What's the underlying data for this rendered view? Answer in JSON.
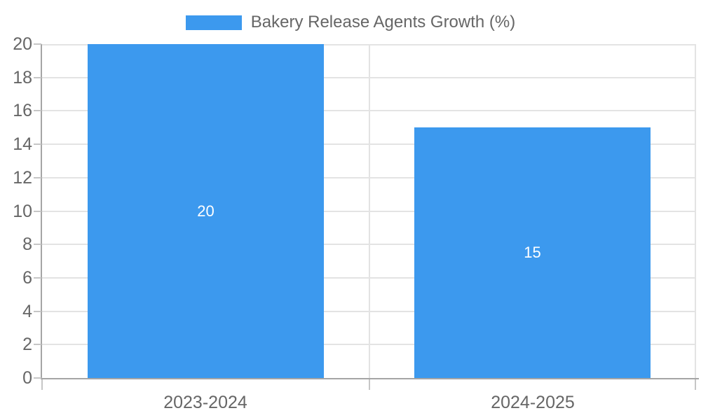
{
  "chart_data": {
    "type": "bar",
    "title": "Bakery Release Agents Growth (%)",
    "legend": {
      "position": "top",
      "entries": [
        "Bakery Release Agents Growth (%)"
      ]
    },
    "categories": [
      "2023-2024",
      "2024-2025"
    ],
    "series": [
      {
        "name": "Bakery Release Agents Growth (%)",
        "values": [
          20,
          15
        ]
      }
    ],
    "bar_value_labels": [
      "20",
      "15"
    ],
    "xlabel": "",
    "ylabel": "",
    "ylim": [
      0,
      20
    ],
    "yticks": [
      0,
      2,
      4,
      6,
      8,
      10,
      12,
      14,
      16,
      18,
      20
    ],
    "grid": true,
    "colors": {
      "bar": "#3C99EE",
      "axis_text": "#666666",
      "bar_label_text": "#FFFFFF",
      "grid_line": "#E3E3E3",
      "axis_line": "#A5A5A5",
      "tick_mark": "#C6C6C6",
      "background": "#FFFFFF"
    }
  }
}
